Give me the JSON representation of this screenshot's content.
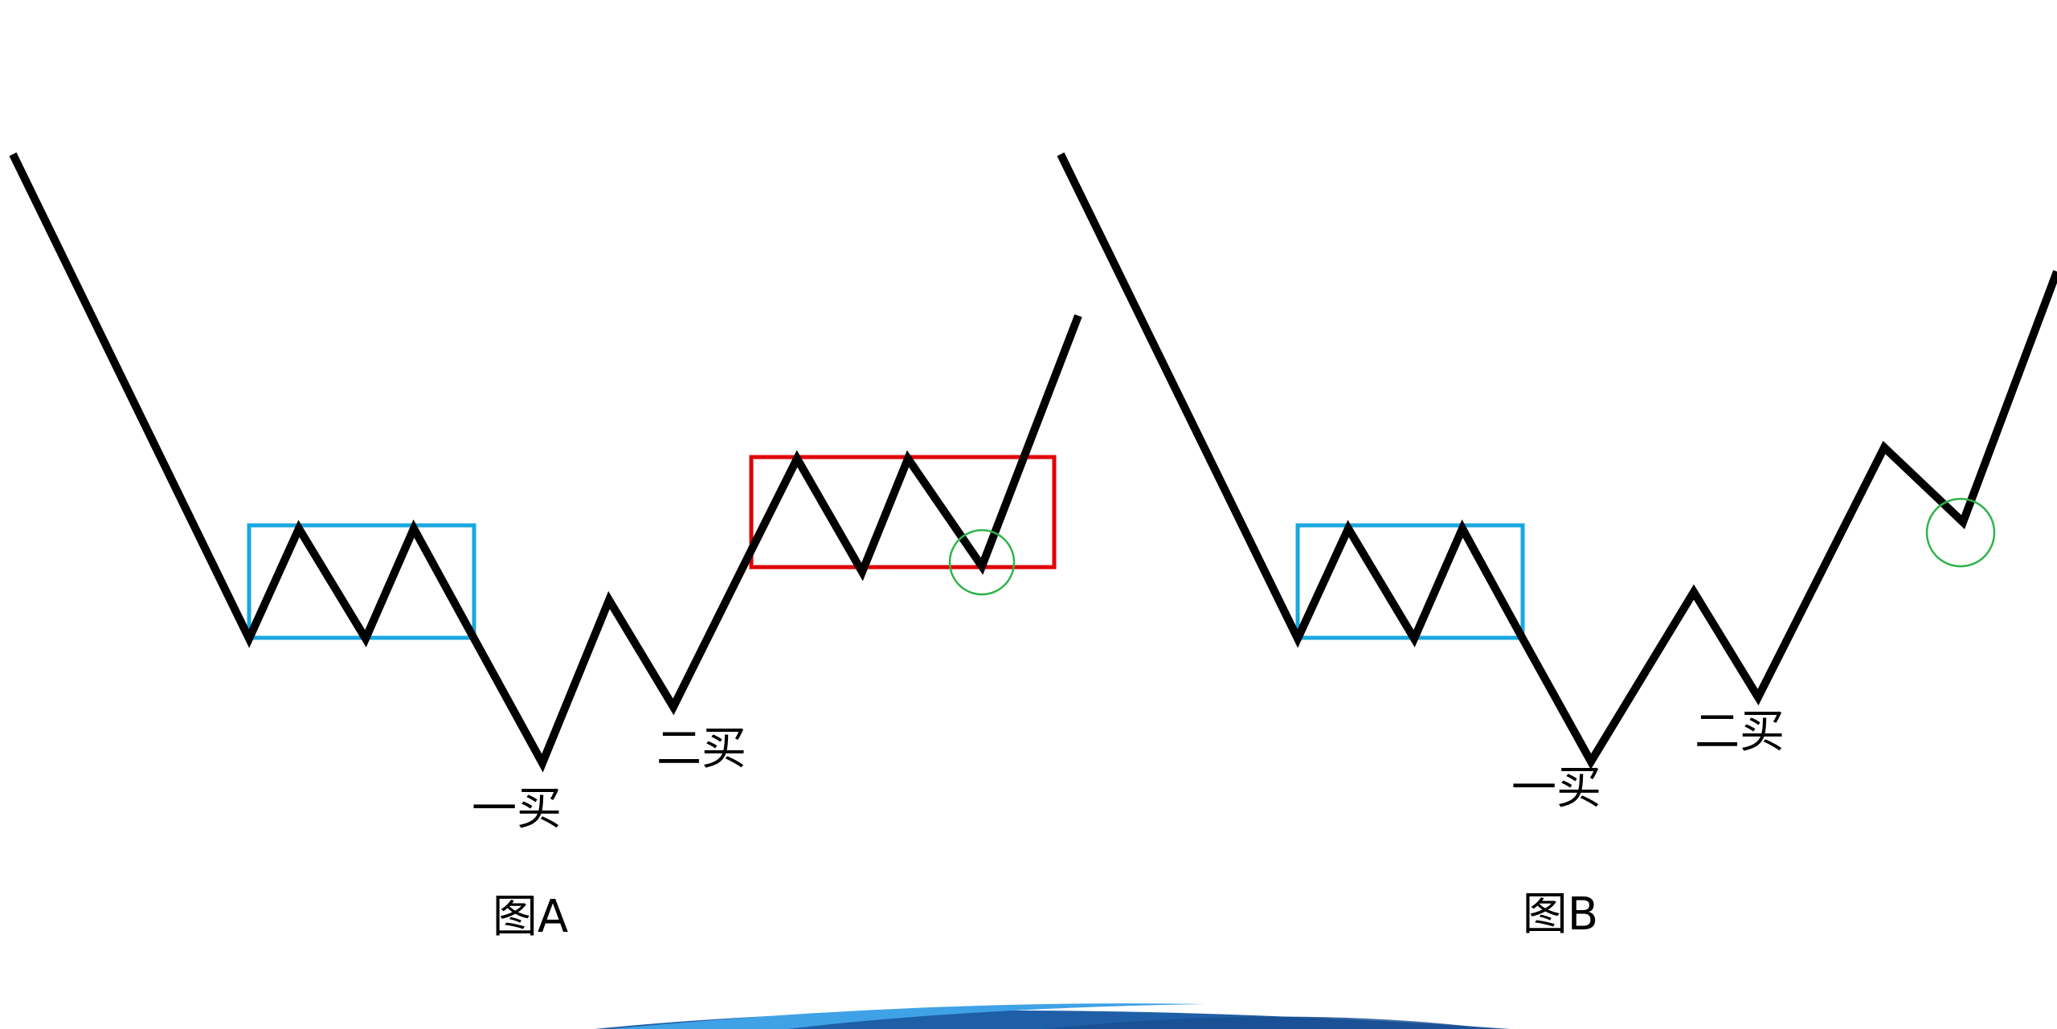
{
  "colors": {
    "background": "#ffffff",
    "price_line": "#000000",
    "pivot_box_1": "#1aa7e0",
    "pivot_box_2": "#e00000",
    "highlight_circle": "#2fb34a",
    "swoosh_dark": "#1f5fa8",
    "swoosh_light": "#3fa2e6"
  },
  "diagram_a": {
    "caption": "图A",
    "first_buy_label": "一买",
    "second_buy_label": "二买"
  },
  "diagram_b": {
    "caption": "图B",
    "first_buy_label": "一买",
    "second_buy_label": "二买"
  }
}
